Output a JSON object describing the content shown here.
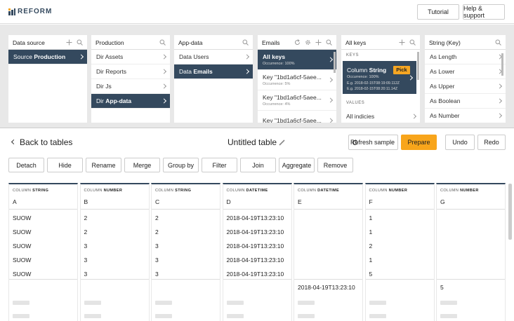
{
  "header": {
    "logo": "REFORM",
    "buttons": [
      "Tutorial",
      "Help & support"
    ]
  },
  "panels": [
    {
      "title": "Data source",
      "items": [
        {
          "prefix": "Source",
          "name": "Production",
          "selected": true
        }
      ]
    },
    {
      "title": "Production",
      "items": [
        {
          "prefix": "Dir",
          "name": "Assets"
        },
        {
          "prefix": "Dir",
          "name": "Reports"
        },
        {
          "prefix": "Dir",
          "name": "Js"
        },
        {
          "prefix": "Dir",
          "name": "App-data",
          "selected": true
        }
      ]
    },
    {
      "title": "App-data",
      "items": [
        {
          "prefix": "Data",
          "name": "Users"
        },
        {
          "prefix": "Data",
          "name": "Emails",
          "selected": true
        }
      ]
    },
    {
      "title": "Emails",
      "items": [
        {
          "name": "All keys",
          "sub": "Occurrence: 100%",
          "selected": true
        },
        {
          "name": "Key \"1bd1a6cf-5aee...",
          "sub": "Occurrence: 5%"
        },
        {
          "name": "Key \"1bd1a6cf-5aee...",
          "sub": "Occurrence: 4%"
        },
        {
          "name": "Key \"1bd1a6cf-5aee..."
        }
      ]
    },
    {
      "title": "All keys",
      "keys_label": "KEYS",
      "card": {
        "prefix": "Column",
        "name": "String",
        "sub": "Occurrence: 100%",
        "badge": "Pick",
        "examples": [
          "E.g. 2018-02-15T08:19:09.112Z",
          "E.g. 2018-02-15T08:20:11.14Z"
        ]
      },
      "values_label": "VALUES",
      "values_items": [
        "All indicies"
      ]
    },
    {
      "title": "String (Key)",
      "items": [
        {
          "name": "As Length"
        },
        {
          "name": "As Lower"
        },
        {
          "name": "As Upper"
        },
        {
          "name": "As Boolean"
        },
        {
          "name": "As Number"
        }
      ]
    }
  ],
  "toolbar": {
    "back": "Back to tables",
    "table_title": "Untitled table",
    "refresh": "Refresh sample",
    "prepare": "Prepare",
    "undo": "Undo",
    "redo": "Redo",
    "actions": [
      "Detach",
      "Hide",
      "Rename",
      "Merge",
      "Group by",
      "Filter",
      "Join",
      "Aggregate",
      "Remove"
    ]
  },
  "table": {
    "columns": [
      {
        "label": "COLUMN",
        "type": "STRING",
        "name": "A"
      },
      {
        "label": "COLUMN",
        "type": "NUMBER",
        "name": "B"
      },
      {
        "label": "COLUMN",
        "type": "STRING",
        "name": "C"
      },
      {
        "label": "COLUMN",
        "type": "DATETIME",
        "name": "D"
      },
      {
        "label": "COLUMN",
        "type": "DATETIME",
        "name": "E"
      },
      {
        "label": "COLUMN",
        "type": "NUMBER",
        "name": "F"
      },
      {
        "label": "COLUMN",
        "type": "NUMBER",
        "name": "G"
      }
    ],
    "rows": [
      [
        "SUOW",
        2,
        2,
        "2018-04-19T13:23:10",
        null,
        1,
        null
      ],
      [
        "SUOW",
        2,
        2,
        "2018-04-19T13:23:10",
        null,
        1,
        null
      ],
      [
        "SUOW",
        3,
        3,
        "2018-04-19T13:23:10",
        null,
        2,
        null
      ],
      [
        "SUOW",
        3,
        3,
        "2018-04-19T13:23:10",
        null,
        1,
        null
      ],
      [
        "SUOW",
        3,
        3,
        "2018-04-19T13:23:10",
        null,
        5,
        null
      ],
      [
        null,
        null,
        null,
        null,
        "2018-04-19T13:23:10",
        null,
        5
      ]
    ]
  }
}
